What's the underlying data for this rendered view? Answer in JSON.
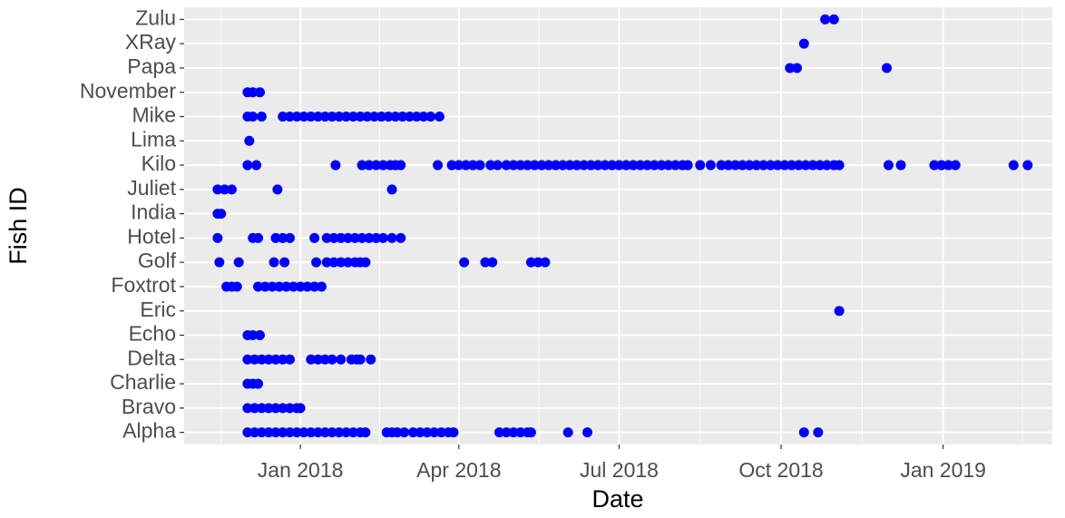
{
  "chart_data": {
    "type": "scatter",
    "xlabel": "Date",
    "ylabel": "Fish ID",
    "color": "#0000ff",
    "grid": true,
    "xlim": [
      "2017-10-27",
      "2019-03-04"
    ],
    "xticks": [
      {
        "value": "2018-01-01",
        "label": "Jan 2018"
      },
      {
        "value": "2018-04-01",
        "label": "Apr 2018"
      },
      {
        "value": "2018-07-01",
        "label": "Jul 2018"
      },
      {
        "value": "2018-10-01",
        "label": "Oct 2018"
      },
      {
        "value": "2019-01-01",
        "label": "Jan 2019"
      }
    ],
    "rows": [
      {
        "name": "Alpha",
        "x": [
          "2017-12-02",
          "2017-12-06",
          "2017-12-10",
          "2017-12-14",
          "2017-12-18",
          "2017-12-22",
          "2017-12-26",
          "2017-12-30",
          "2018-01-03",
          "2018-01-07",
          "2018-01-11",
          "2018-01-15",
          "2018-01-19",
          "2018-01-23",
          "2018-01-27",
          "2018-01-31",
          "2018-02-04",
          "2018-02-07",
          "2018-02-19",
          "2018-02-22",
          "2018-02-25",
          "2018-03-01",
          "2018-03-06",
          "2018-03-10",
          "2018-03-14",
          "2018-03-18",
          "2018-03-22",
          "2018-03-26",
          "2018-03-29",
          "2018-04-24",
          "2018-04-28",
          "2018-05-02",
          "2018-05-06",
          "2018-05-10",
          "2018-05-12",
          "2018-06-02",
          "2018-06-13",
          "2018-10-14",
          "2018-10-22"
        ]
      },
      {
        "name": "Bravo",
        "x": [
          "2017-12-02",
          "2017-12-06",
          "2017-12-10",
          "2017-12-14",
          "2017-12-18",
          "2017-12-22",
          "2017-12-26",
          "2017-12-30",
          "2018-01-01"
        ]
      },
      {
        "name": "Charlie",
        "x": [
          "2017-12-02",
          "2017-12-05",
          "2017-12-08"
        ]
      },
      {
        "name": "Delta",
        "x": [
          "2017-12-02",
          "2017-12-06",
          "2017-12-10",
          "2017-12-14",
          "2017-12-18",
          "2017-12-22",
          "2017-12-26",
          "2018-01-07",
          "2018-01-11",
          "2018-01-15",
          "2018-01-19",
          "2018-01-24",
          "2018-01-30",
          "2018-02-02",
          "2018-02-04",
          "2018-02-10"
        ]
      },
      {
        "name": "Echo",
        "x": [
          "2017-12-02",
          "2017-12-05",
          "2017-12-09"
        ]
      },
      {
        "name": "Eric",
        "x": [
          "2018-11-03"
        ]
      },
      {
        "name": "Foxtrot",
        "x": [
          "2017-11-20",
          "2017-11-23",
          "2017-11-26",
          "2017-12-08",
          "2017-12-12",
          "2017-12-16",
          "2017-12-20",
          "2017-12-24",
          "2017-12-28",
          "2018-01-01",
          "2018-01-05",
          "2018-01-09",
          "2018-01-13"
        ]
      },
      {
        "name": "Golf",
        "x": [
          "2017-11-16",
          "2017-11-27",
          "2017-12-17",
          "2017-12-23",
          "2018-01-10",
          "2018-01-16",
          "2018-01-20",
          "2018-01-24",
          "2018-01-28",
          "2018-02-01",
          "2018-02-04",
          "2018-02-07",
          "2018-04-04",
          "2018-04-16",
          "2018-04-20",
          "2018-05-12",
          "2018-05-16",
          "2018-05-20"
        ]
      },
      {
        "name": "Hotel",
        "x": [
          "2017-11-15",
          "2017-12-05",
          "2017-12-08",
          "2017-12-18",
          "2017-12-22",
          "2017-12-26",
          "2018-01-09",
          "2018-01-16",
          "2018-01-20",
          "2018-01-24",
          "2018-01-28",
          "2018-02-01",
          "2018-02-05",
          "2018-02-09",
          "2018-02-13",
          "2018-02-17",
          "2018-02-22",
          "2018-02-27"
        ]
      },
      {
        "name": "India",
        "x": [
          "2017-11-15",
          "2017-11-17"
        ]
      },
      {
        "name": "Juliet",
        "x": [
          "2017-11-15",
          "2017-11-19",
          "2017-11-23",
          "2017-12-19",
          "2018-02-22"
        ]
      },
      {
        "name": "Kilo",
        "x": [
          "2017-12-02",
          "2017-12-07",
          "2018-01-21",
          "2018-02-05",
          "2018-02-09",
          "2018-02-13",
          "2018-02-17",
          "2018-02-21",
          "2018-02-24",
          "2018-02-27",
          "2018-03-20",
          "2018-03-28",
          "2018-04-01",
          "2018-04-05",
          "2018-04-09",
          "2018-04-13",
          "2018-04-19",
          "2018-04-23",
          "2018-04-28",
          "2018-05-02",
          "2018-05-06",
          "2018-05-10",
          "2018-05-14",
          "2018-05-18",
          "2018-05-22",
          "2018-05-26",
          "2018-05-30",
          "2018-06-03",
          "2018-06-07",
          "2018-06-11",
          "2018-06-15",
          "2018-06-19",
          "2018-06-23",
          "2018-06-27",
          "2018-07-01",
          "2018-07-05",
          "2018-07-09",
          "2018-07-13",
          "2018-07-17",
          "2018-07-21",
          "2018-07-25",
          "2018-07-29",
          "2018-08-02",
          "2018-08-06",
          "2018-08-09",
          "2018-08-16",
          "2018-08-22",
          "2018-08-28",
          "2018-09-01",
          "2018-09-05",
          "2018-09-09",
          "2018-09-13",
          "2018-09-17",
          "2018-09-21",
          "2018-09-25",
          "2018-09-29",
          "2018-10-03",
          "2018-10-07",
          "2018-10-11",
          "2018-10-15",
          "2018-10-19",
          "2018-10-23",
          "2018-10-27",
          "2018-10-31",
          "2018-11-03",
          "2018-12-01",
          "2018-12-08",
          "2018-12-27",
          "2018-12-31",
          "2019-01-04",
          "2019-01-08",
          "2019-02-10",
          "2019-02-18"
        ]
      },
      {
        "name": "Lima",
        "x": [
          "2017-12-03"
        ]
      },
      {
        "name": "Mike",
        "x": [
          "2017-12-02",
          "2017-12-05",
          "2017-12-10",
          "2017-12-22",
          "2017-12-26",
          "2017-12-30",
          "2018-01-03",
          "2018-01-07",
          "2018-01-11",
          "2018-01-15",
          "2018-01-19",
          "2018-01-23",
          "2018-01-27",
          "2018-01-31",
          "2018-02-04",
          "2018-02-08",
          "2018-02-12",
          "2018-02-16",
          "2018-02-20",
          "2018-02-24",
          "2018-02-28",
          "2018-03-04",
          "2018-03-08",
          "2018-03-12",
          "2018-03-16",
          "2018-03-21"
        ]
      },
      {
        "name": "November",
        "x": [
          "2017-12-02",
          "2017-12-05",
          "2017-12-09"
        ]
      },
      {
        "name": "Papa",
        "x": [
          "2018-10-06",
          "2018-10-10",
          "2018-11-30"
        ]
      },
      {
        "name": "XRay",
        "x": [
          "2018-10-14"
        ]
      },
      {
        "name": "Zulu",
        "x": [
          "2018-10-26",
          "2018-10-31"
        ]
      }
    ]
  }
}
